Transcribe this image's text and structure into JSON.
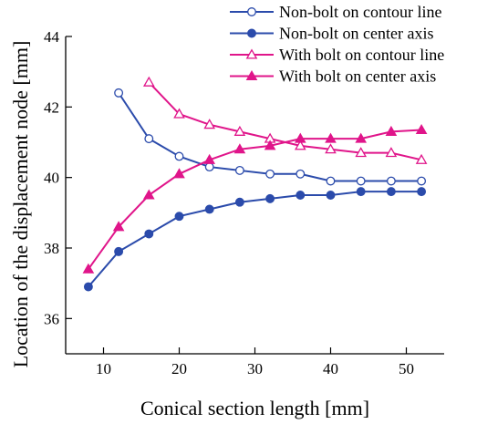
{
  "chart_data": {
    "type": "line",
    "title": "",
    "xlabel": "Conical section length  [mm]",
    "ylabel": "Location of the displacement node  [mm]",
    "xlim": [
      5,
      55
    ],
    "ylim": [
      35,
      44
    ],
    "xticks": [
      10,
      20,
      30,
      40,
      50
    ],
    "yticks": [
      36,
      38,
      40,
      42,
      44
    ],
    "grid": false,
    "legend_position": "top-right",
    "series": [
      {
        "name": "Non-bolt on contour line",
        "color": "#2b4bab",
        "marker": "circle",
        "filled": false,
        "x": [
          12,
          16,
          20,
          24,
          28,
          32,
          36,
          40,
          44,
          48,
          52
        ],
        "values": [
          42.4,
          41.1,
          40.6,
          40.3,
          40.2,
          40.1,
          40.1,
          39.9,
          39.9,
          39.9,
          39.9
        ]
      },
      {
        "name": "Non-bolt on center axis",
        "color": "#2b4bab",
        "marker": "circle",
        "filled": true,
        "x": [
          8,
          12,
          16,
          20,
          24,
          28,
          32,
          36,
          40,
          44,
          48,
          52
        ],
        "values": [
          36.9,
          37.9,
          38.4,
          38.9,
          39.1,
          39.3,
          39.4,
          39.5,
          39.5,
          39.6,
          39.6,
          39.6
        ]
      },
      {
        "name": "With bolt on contour line",
        "color": "#e0158a",
        "marker": "triangle",
        "filled": false,
        "x": [
          16,
          20,
          24,
          28,
          32,
          36,
          40,
          44,
          48,
          52
        ],
        "values": [
          42.7,
          41.8,
          41.5,
          41.3,
          41.1,
          40.9,
          40.8,
          40.7,
          40.7,
          40.5
        ]
      },
      {
        "name": "With bolt on center axis",
        "color": "#e0158a",
        "marker": "triangle",
        "filled": true,
        "x": [
          8,
          12,
          16,
          20,
          24,
          28,
          32,
          36,
          40,
          44,
          48,
          52
        ],
        "values": [
          37.4,
          38.6,
          39.5,
          40.1,
          40.5,
          40.8,
          40.9,
          41.1,
          41.1,
          41.1,
          41.3,
          41.35
        ]
      }
    ]
  }
}
